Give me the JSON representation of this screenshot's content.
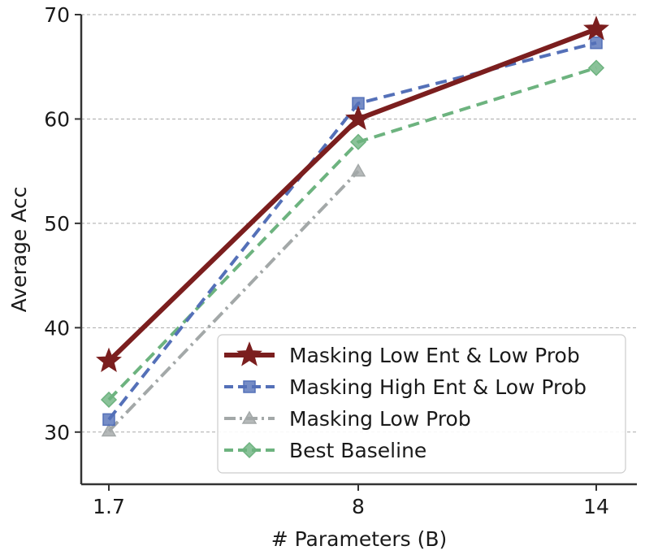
{
  "chart_data": {
    "type": "line",
    "categories": [
      "1.7",
      "8",
      "14"
    ],
    "xlabel": "# Parameters (B)",
    "ylabel": "Average Acc",
    "ylim": [
      25,
      70
    ],
    "yticks": [
      30,
      40,
      50,
      60,
      70
    ],
    "grid": "horizontal dashed",
    "legend_position": "bottom-right",
    "series": [
      {
        "name": "Masking Low Ent & Low Prob",
        "values": [
          36.8,
          60.0,
          68.6
        ],
        "color": "#7b1e1e",
        "line_style": "solid",
        "marker": "star"
      },
      {
        "name": "Masking High Ent & Low Prob",
        "values": [
          31.2,
          61.5,
          67.3
        ],
        "color": "#5470b8",
        "line_style": "dashed",
        "marker": "square"
      },
      {
        "name": "Masking Low Prob",
        "values": [
          30.1,
          55.0,
          null
        ],
        "color": "#a3a8a8",
        "line_style": "dashdot",
        "marker": "triangle"
      },
      {
        "name": "Best Baseline",
        "values": [
          33.1,
          57.8,
          64.9
        ],
        "color": "#6db37f",
        "line_style": "dashed",
        "marker": "diamond"
      }
    ]
  }
}
